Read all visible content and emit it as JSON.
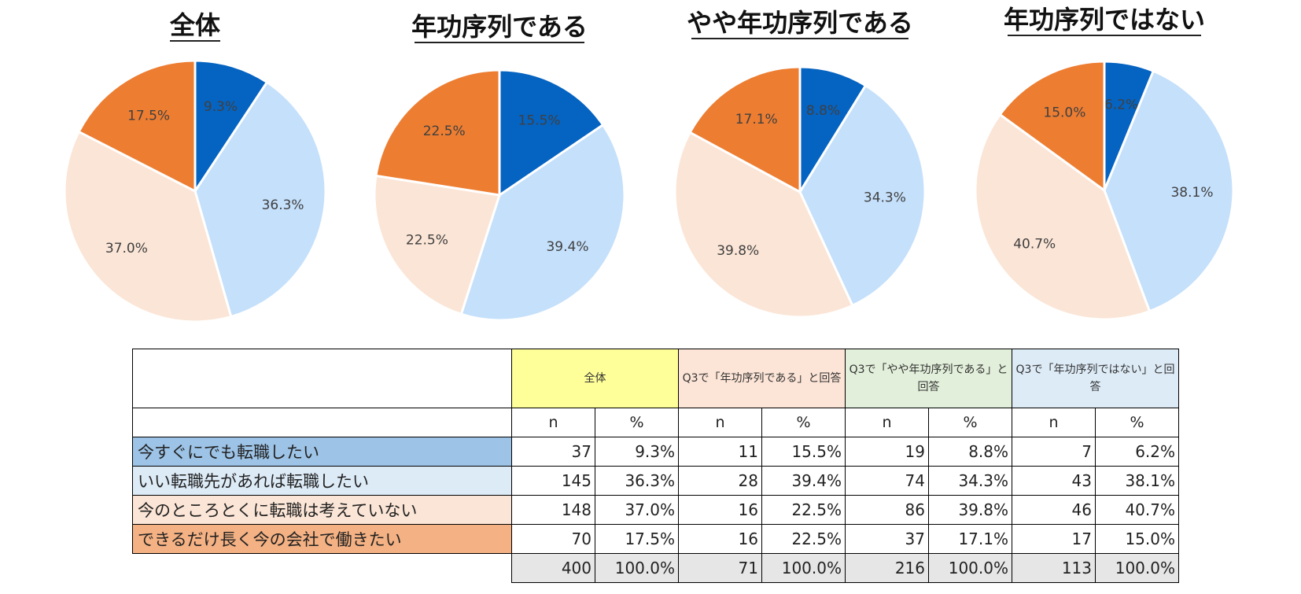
{
  "chart_data": [
    {
      "type": "pie",
      "title": "全体",
      "categories": [
        "今すぐにでも転職したい",
        "いい転職先があれば転職したい",
        "今のところとくに転職は考えていない",
        "できるだけ長く今の会社で働きたい"
      ],
      "values": [
        9.3,
        36.3,
        37.0,
        17.5
      ],
      "labels": [
        "9.3%",
        "36.3%",
        "37.0%",
        "17.5%"
      ]
    },
    {
      "type": "pie",
      "title": "年功序列である",
      "categories": [
        "今すぐにでも転職したい",
        "いい転職先があれば転職したい",
        "今のところとくに転職は考えていない",
        "できるだけ長く今の会社で働きたい"
      ],
      "values": [
        15.5,
        39.4,
        22.5,
        22.5
      ],
      "labels": [
        "15.5%",
        "39.4%",
        "22.5%",
        "22.5%"
      ]
    },
    {
      "type": "pie",
      "title": "やや年功序列である",
      "categories": [
        "今すぐにでも転職したい",
        "いい転職先があれば転職したい",
        "今のところとくに転職は考えていない",
        "できるだけ長く今の会社で働きたい"
      ],
      "values": [
        8.8,
        34.3,
        39.8,
        17.1
      ],
      "labels": [
        "8.8%",
        "34.3%",
        "39.8%",
        "17.1%"
      ]
    },
    {
      "type": "pie",
      "title": "年功序列ではない",
      "categories": [
        "今すぐにでも転職したい",
        "いい転職先があれば転職したい",
        "今のところとくに転職は考えていない",
        "できるだけ長く今の会社で働きたい"
      ],
      "values": [
        6.2,
        38.1,
        40.7,
        15.0
      ],
      "labels": [
        "6.2%",
        "38.1%",
        "40.7%",
        "15.0%"
      ]
    },
    {
      "type": "table",
      "groups": [
        "全体",
        "Q3で「年功序列である」と回答",
        "Q3で「やや年功序列である」と回答",
        "Q3で「年功序列ではない」と回答"
      ],
      "subheaders": [
        "n",
        "%"
      ],
      "rows": [
        {
          "label": "今すぐにでも転職したい",
          "cells": [
            "37",
            "9.3%",
            "11",
            "15.5%",
            "19",
            "8.8%",
            "7",
            "6.2%"
          ]
        },
        {
          "label": "いい転職先があれば転職したい",
          "cells": [
            "145",
            "36.3%",
            "28",
            "39.4%",
            "74",
            "34.3%",
            "43",
            "38.1%"
          ]
        },
        {
          "label": "今のところとくに転職は考えていない",
          "cells": [
            "148",
            "37.0%",
            "16",
            "22.5%",
            "86",
            "39.8%",
            "46",
            "40.7%"
          ]
        },
        {
          "label": "できるだけ長く今の会社で働きたい",
          "cells": [
            "70",
            "17.5%",
            "16",
            "22.5%",
            "37",
            "17.1%",
            "17",
            "15.0%"
          ]
        },
        {
          "label": "",
          "cells": [
            "400",
            "100.0%",
            "71",
            "100.0%",
            "216",
            "100.0%",
            "113",
            "100.0%"
          ]
        }
      ]
    }
  ],
  "colors": {
    "slices": [
      "#0563c1",
      "#c5e0fb",
      "#fbe5d6",
      "#ed7d31"
    ],
    "row_label_bg": [
      "#9dc3e6",
      "#ddebf7",
      "#fbe5d6",
      "#f4b183"
    ],
    "group_header_bg": [
      "#ffff99",
      "#fce4d6",
      "#e2efda",
      "#ddebf7"
    ],
    "total_bg": "#e7e6e6"
  }
}
